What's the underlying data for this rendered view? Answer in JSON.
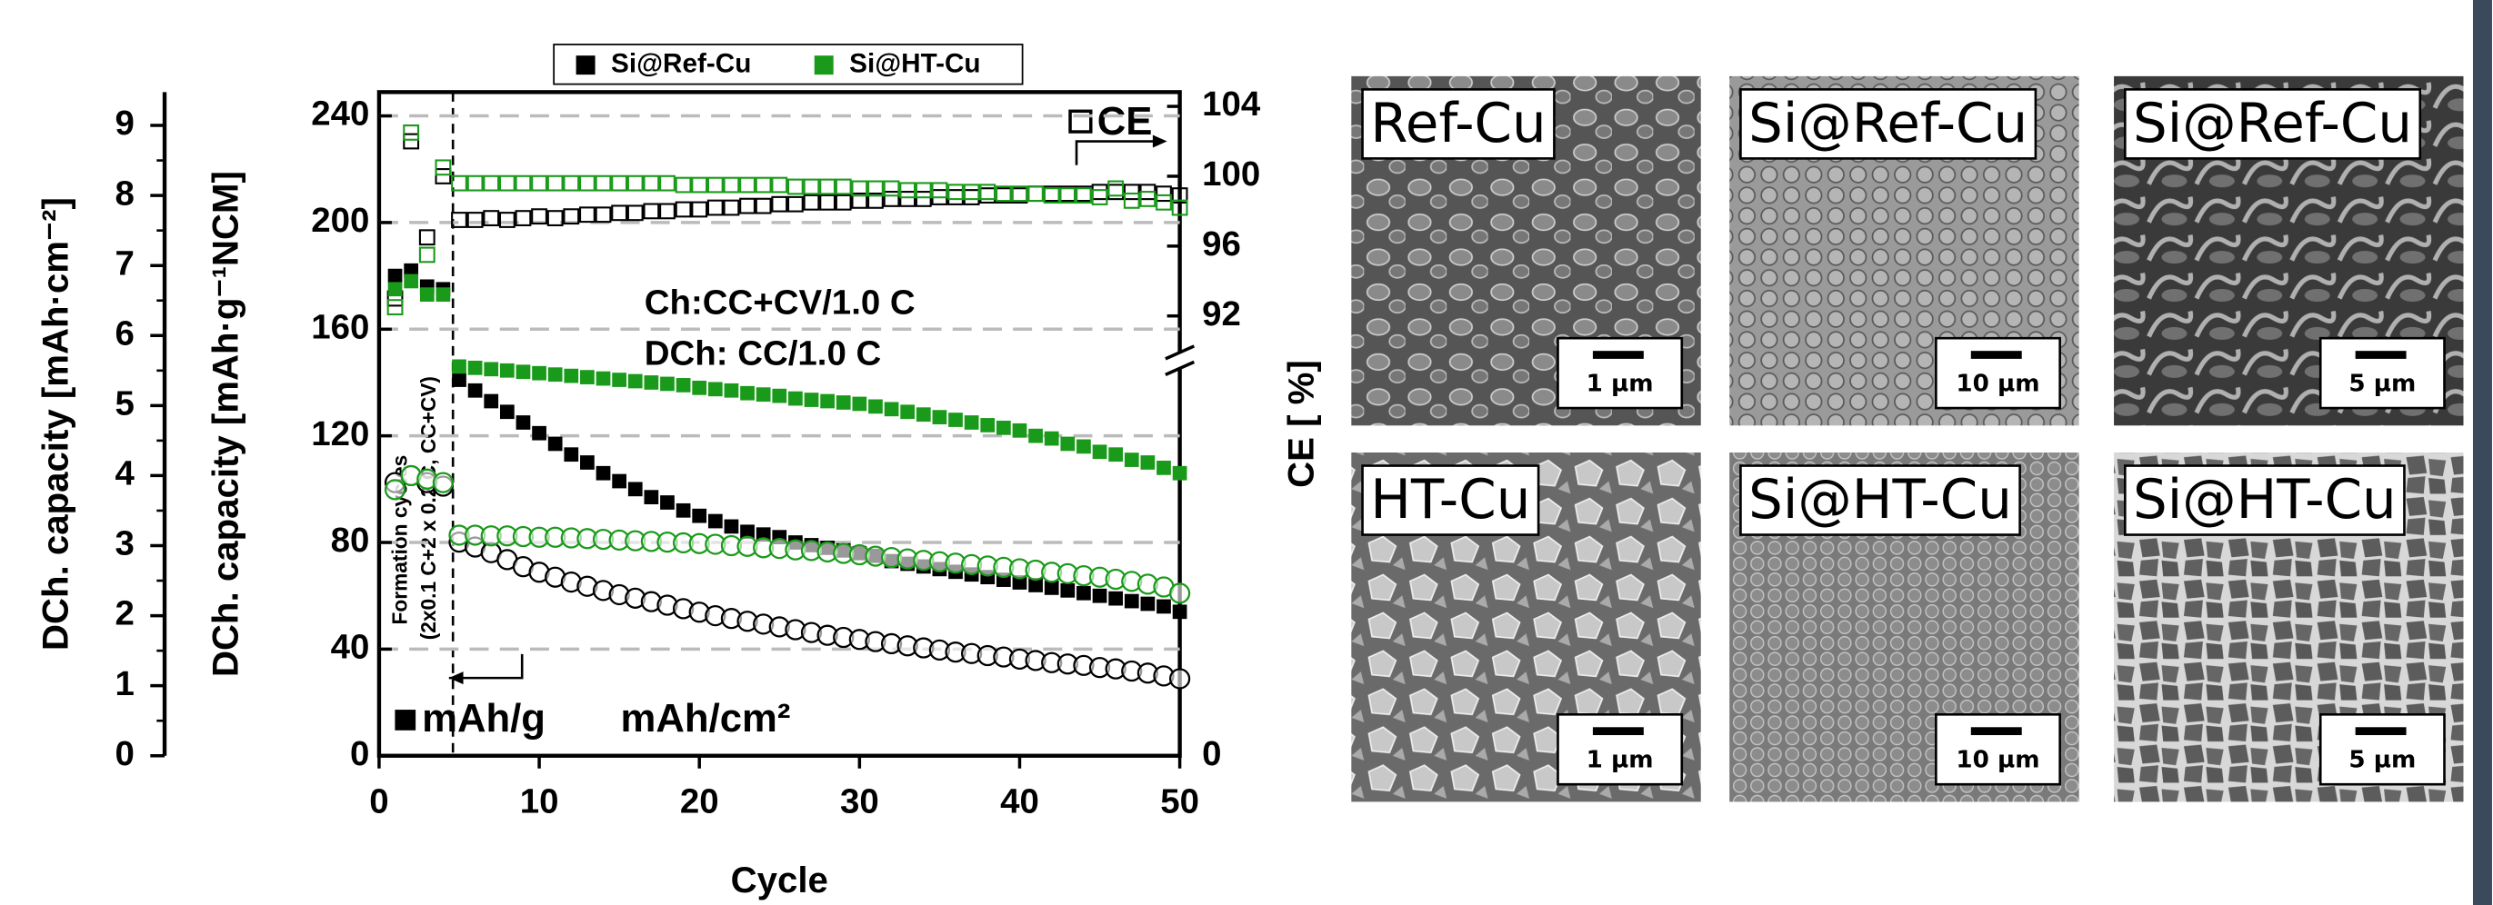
{
  "chart_data": {
    "type": "scatter",
    "x": [
      1,
      2,
      3,
      4,
      5,
      6,
      7,
      8,
      9,
      10,
      11,
      12,
      13,
      14,
      15,
      16,
      17,
      18,
      19,
      20,
      21,
      22,
      23,
      24,
      25,
      26,
      27,
      28,
      29,
      30,
      31,
      32,
      33,
      34,
      35,
      36,
      37,
      38,
      39,
      40,
      41,
      42,
      43,
      44,
      45,
      46,
      47,
      48,
      49,
      50
    ],
    "xlim": [
      0,
      50
    ],
    "xticks": [
      0,
      10,
      20,
      30,
      40,
      50
    ],
    "xlabel": "Cycle",
    "ylim": [
      0,
      240
    ],
    "yticks": [
      40,
      80,
      120,
      160,
      200,
      240
    ],
    "y0tick": 0,
    "ylabel": "DCh. capacity [mAh·g⁻¹NCM]",
    "y3lim": [
      0,
      9
    ],
    "y3ticks": [
      0,
      1,
      2,
      3,
      4,
      5,
      6,
      7,
      8,
      9
    ],
    "y3label": "DCh. capacity [mAh·cm⁻²]",
    "y2lim": [
      0,
      104
    ],
    "y2ticks": [
      0,
      92,
      96,
      100,
      104
    ],
    "y2_break": [
      1,
      90
    ],
    "y2label": "CE [ %]",
    "grid": true,
    "annotations": [
      "Ch:CC+CV/1.0 C",
      "DCh: CC/1.0 C",
      "Formation cycles",
      "(2x0.1 C+2 x 0.2 C, CC+CV)",
      "mAh/g",
      "mAh/cm²",
      "CE"
    ],
    "series": [
      {
        "name": "Si@Ref-Cu",
        "color": "#000000",
        "capacity_g": [
          180,
          182,
          176,
          175,
          141,
          137,
          133,
          129,
          125,
          121,
          117,
          113,
          110,
          106,
          103,
          100,
          97,
          95,
          92,
          90,
          88,
          86,
          84,
          83,
          82,
          80,
          79,
          78,
          77,
          76,
          75,
          73,
          72,
          71,
          70,
          69,
          68,
          67,
          66,
          65,
          64,
          63,
          62,
          61,
          60,
          59,
          58,
          57,
          56,
          54
        ],
        "capacity_cm2": [
          3.9,
          4.0,
          3.9,
          3.85,
          3.05,
          2.98,
          2.9,
          2.8,
          2.7,
          2.62,
          2.55,
          2.48,
          2.42,
          2.36,
          2.3,
          2.25,
          2.2,
          2.15,
          2.1,
          2.05,
          2.0,
          1.96,
          1.92,
          1.88,
          1.84,
          1.8,
          1.76,
          1.72,
          1.69,
          1.66,
          1.63,
          1.6,
          1.57,
          1.54,
          1.51,
          1.48,
          1.46,
          1.43,
          1.41,
          1.38,
          1.36,
          1.33,
          1.31,
          1.29,
          1.26,
          1.24,
          1.21,
          1.18,
          1.14,
          1.1
        ],
        "ce": [
          93,
          102,
          96.5,
          100,
          97.5,
          97.5,
          97.6,
          97.5,
          97.6,
          97.7,
          97.6,
          97.7,
          97.8,
          97.8,
          97.9,
          97.9,
          98,
          98,
          98.1,
          98.1,
          98.2,
          98.2,
          98.3,
          98.3,
          98.4,
          98.4,
          98.5,
          98.5,
          98.5,
          98.6,
          98.6,
          98.7,
          98.7,
          98.7,
          98.8,
          98.8,
          98.8,
          98.9,
          98.9,
          98.9,
          99,
          99,
          99,
          99,
          99.1,
          99.1,
          99.1,
          99.1,
          99,
          98.9
        ]
      },
      {
        "name": "Si@HT-Cu",
        "color": "#1a9a1a",
        "capacity_g": [
          175,
          178,
          173,
          173,
          146,
          145.5,
          145,
          144.5,
          144,
          143.5,
          143,
          142.5,
          142,
          141.5,
          141,
          140.5,
          140,
          139.5,
          139,
          138,
          137.5,
          137,
          136,
          135.5,
          135,
          134,
          133.5,
          133,
          132.5,
          132,
          131,
          130,
          129,
          128,
          127,
          126,
          125,
          124,
          123,
          122,
          120,
          119,
          117,
          116,
          114,
          113,
          111,
          110,
          108,
          106
        ],
        "capacity_cm2": [
          3.8,
          4.0,
          3.95,
          3.9,
          3.15,
          3.15,
          3.14,
          3.14,
          3.13,
          3.12,
          3.12,
          3.11,
          3.1,
          3.09,
          3.08,
          3.07,
          3.06,
          3.05,
          3.04,
          3.03,
          3.02,
          3.0,
          2.99,
          2.97,
          2.96,
          2.94,
          2.93,
          2.91,
          2.89,
          2.87,
          2.85,
          2.83,
          2.81,
          2.79,
          2.77,
          2.75,
          2.73,
          2.71,
          2.69,
          2.67,
          2.65,
          2.62,
          2.6,
          2.57,
          2.55,
          2.52,
          2.49,
          2.45,
          2.41,
          2.32
        ],
        "ce": [
          92.5,
          102.5,
          95.5,
          100.5,
          99.6,
          99.6,
          99.6,
          99.6,
          99.6,
          99.6,
          99.6,
          99.6,
          99.6,
          99.6,
          99.6,
          99.6,
          99.6,
          99.6,
          99.5,
          99.5,
          99.5,
          99.5,
          99.5,
          99.5,
          99.5,
          99.4,
          99.4,
          99.4,
          99.4,
          99.3,
          99.3,
          99.3,
          99.2,
          99.2,
          99.2,
          99.1,
          99.1,
          99.1,
          99,
          99,
          99,
          98.9,
          98.9,
          98.9,
          98.8,
          99.3,
          98.6,
          98.7,
          98.5,
          98.2
        ]
      }
    ]
  },
  "images": [
    {
      "label": "Ref-Cu",
      "scale_bar": "1 µm"
    },
    {
      "label": "Si@Ref-Cu",
      "scale_bar": "10 µm"
    },
    {
      "label": "Si@Ref-Cu",
      "scale_bar": "5 µm"
    },
    {
      "label": "HT-Cu",
      "scale_bar": "1 µm"
    },
    {
      "label": "Si@HT-Cu",
      "scale_bar": "10 µm"
    },
    {
      "label": "Si@HT-Cu",
      "scale_bar": "5 µm"
    }
  ]
}
